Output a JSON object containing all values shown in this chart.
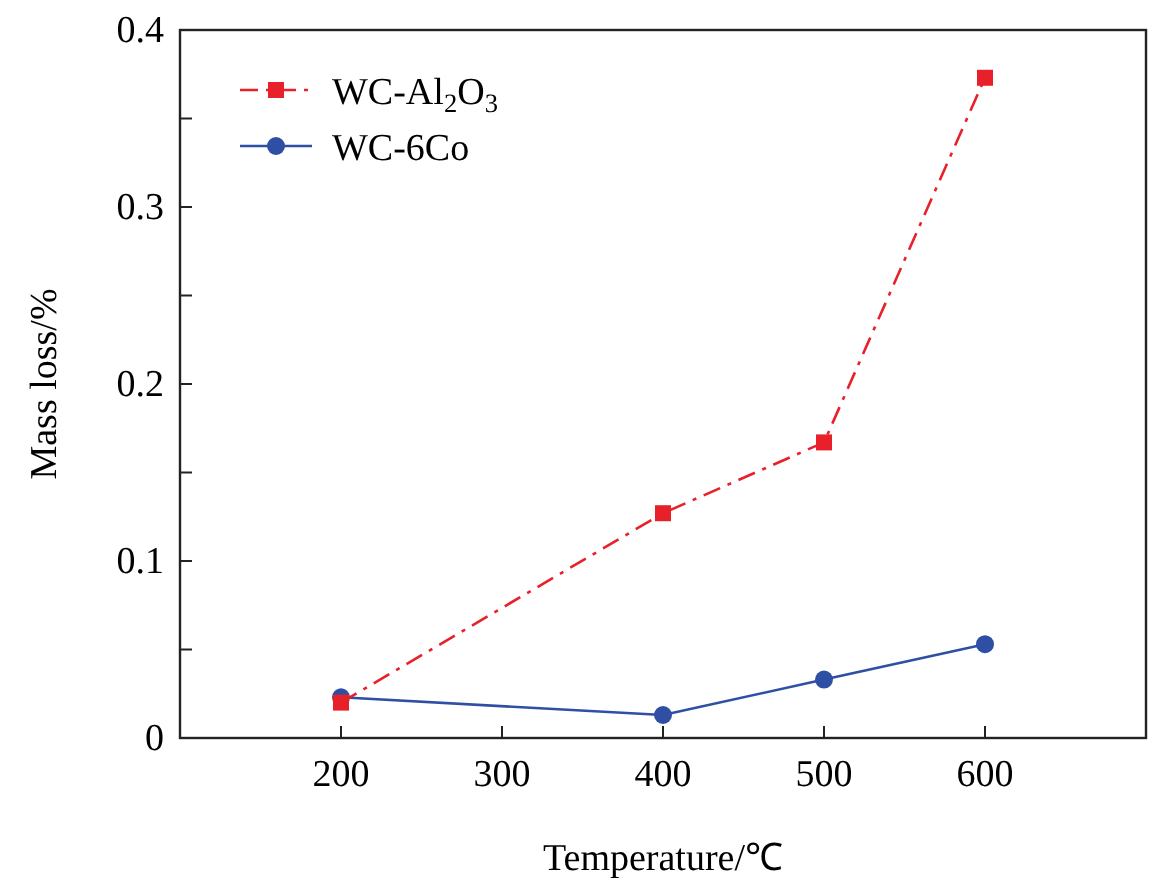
{
  "chart_data": {
    "type": "line",
    "xlabel": "Temperature/℃",
    "ylabel": "Mass loss/%",
    "x": [
      200,
      400,
      500,
      600
    ],
    "xlim": [
      100,
      700
    ],
    "xticks": [
      200,
      300,
      400,
      500,
      600
    ],
    "ylim": [
      0,
      0.4
    ],
    "yticks": [
      0,
      {
        "value": 0.05,
        "label": null
      },
      0.1,
      {
        "value": 0.15,
        "label": null
      },
      0.2,
      {
        "value": 0.25,
        "label": null
      },
      0.3,
      {
        "value": 0.35,
        "label": null
      },
      0.4
    ],
    "grid": false,
    "legend": "top left",
    "series": [
      {
        "name": "WC-Al$_{2}$O$_{3}$",
        "color": "#e8202a",
        "values": [
          0.02,
          0.127,
          0.167,
          0.373
        ],
        "marker": "square",
        "line_style": "dashed"
      },
      {
        "name": "WC-6Co",
        "color": "#2e4fa3",
        "values": [
          0.023,
          0.013,
          0.033,
          0.053
        ],
        "marker": "circle",
        "line_style": "solid"
      }
    ]
  }
}
